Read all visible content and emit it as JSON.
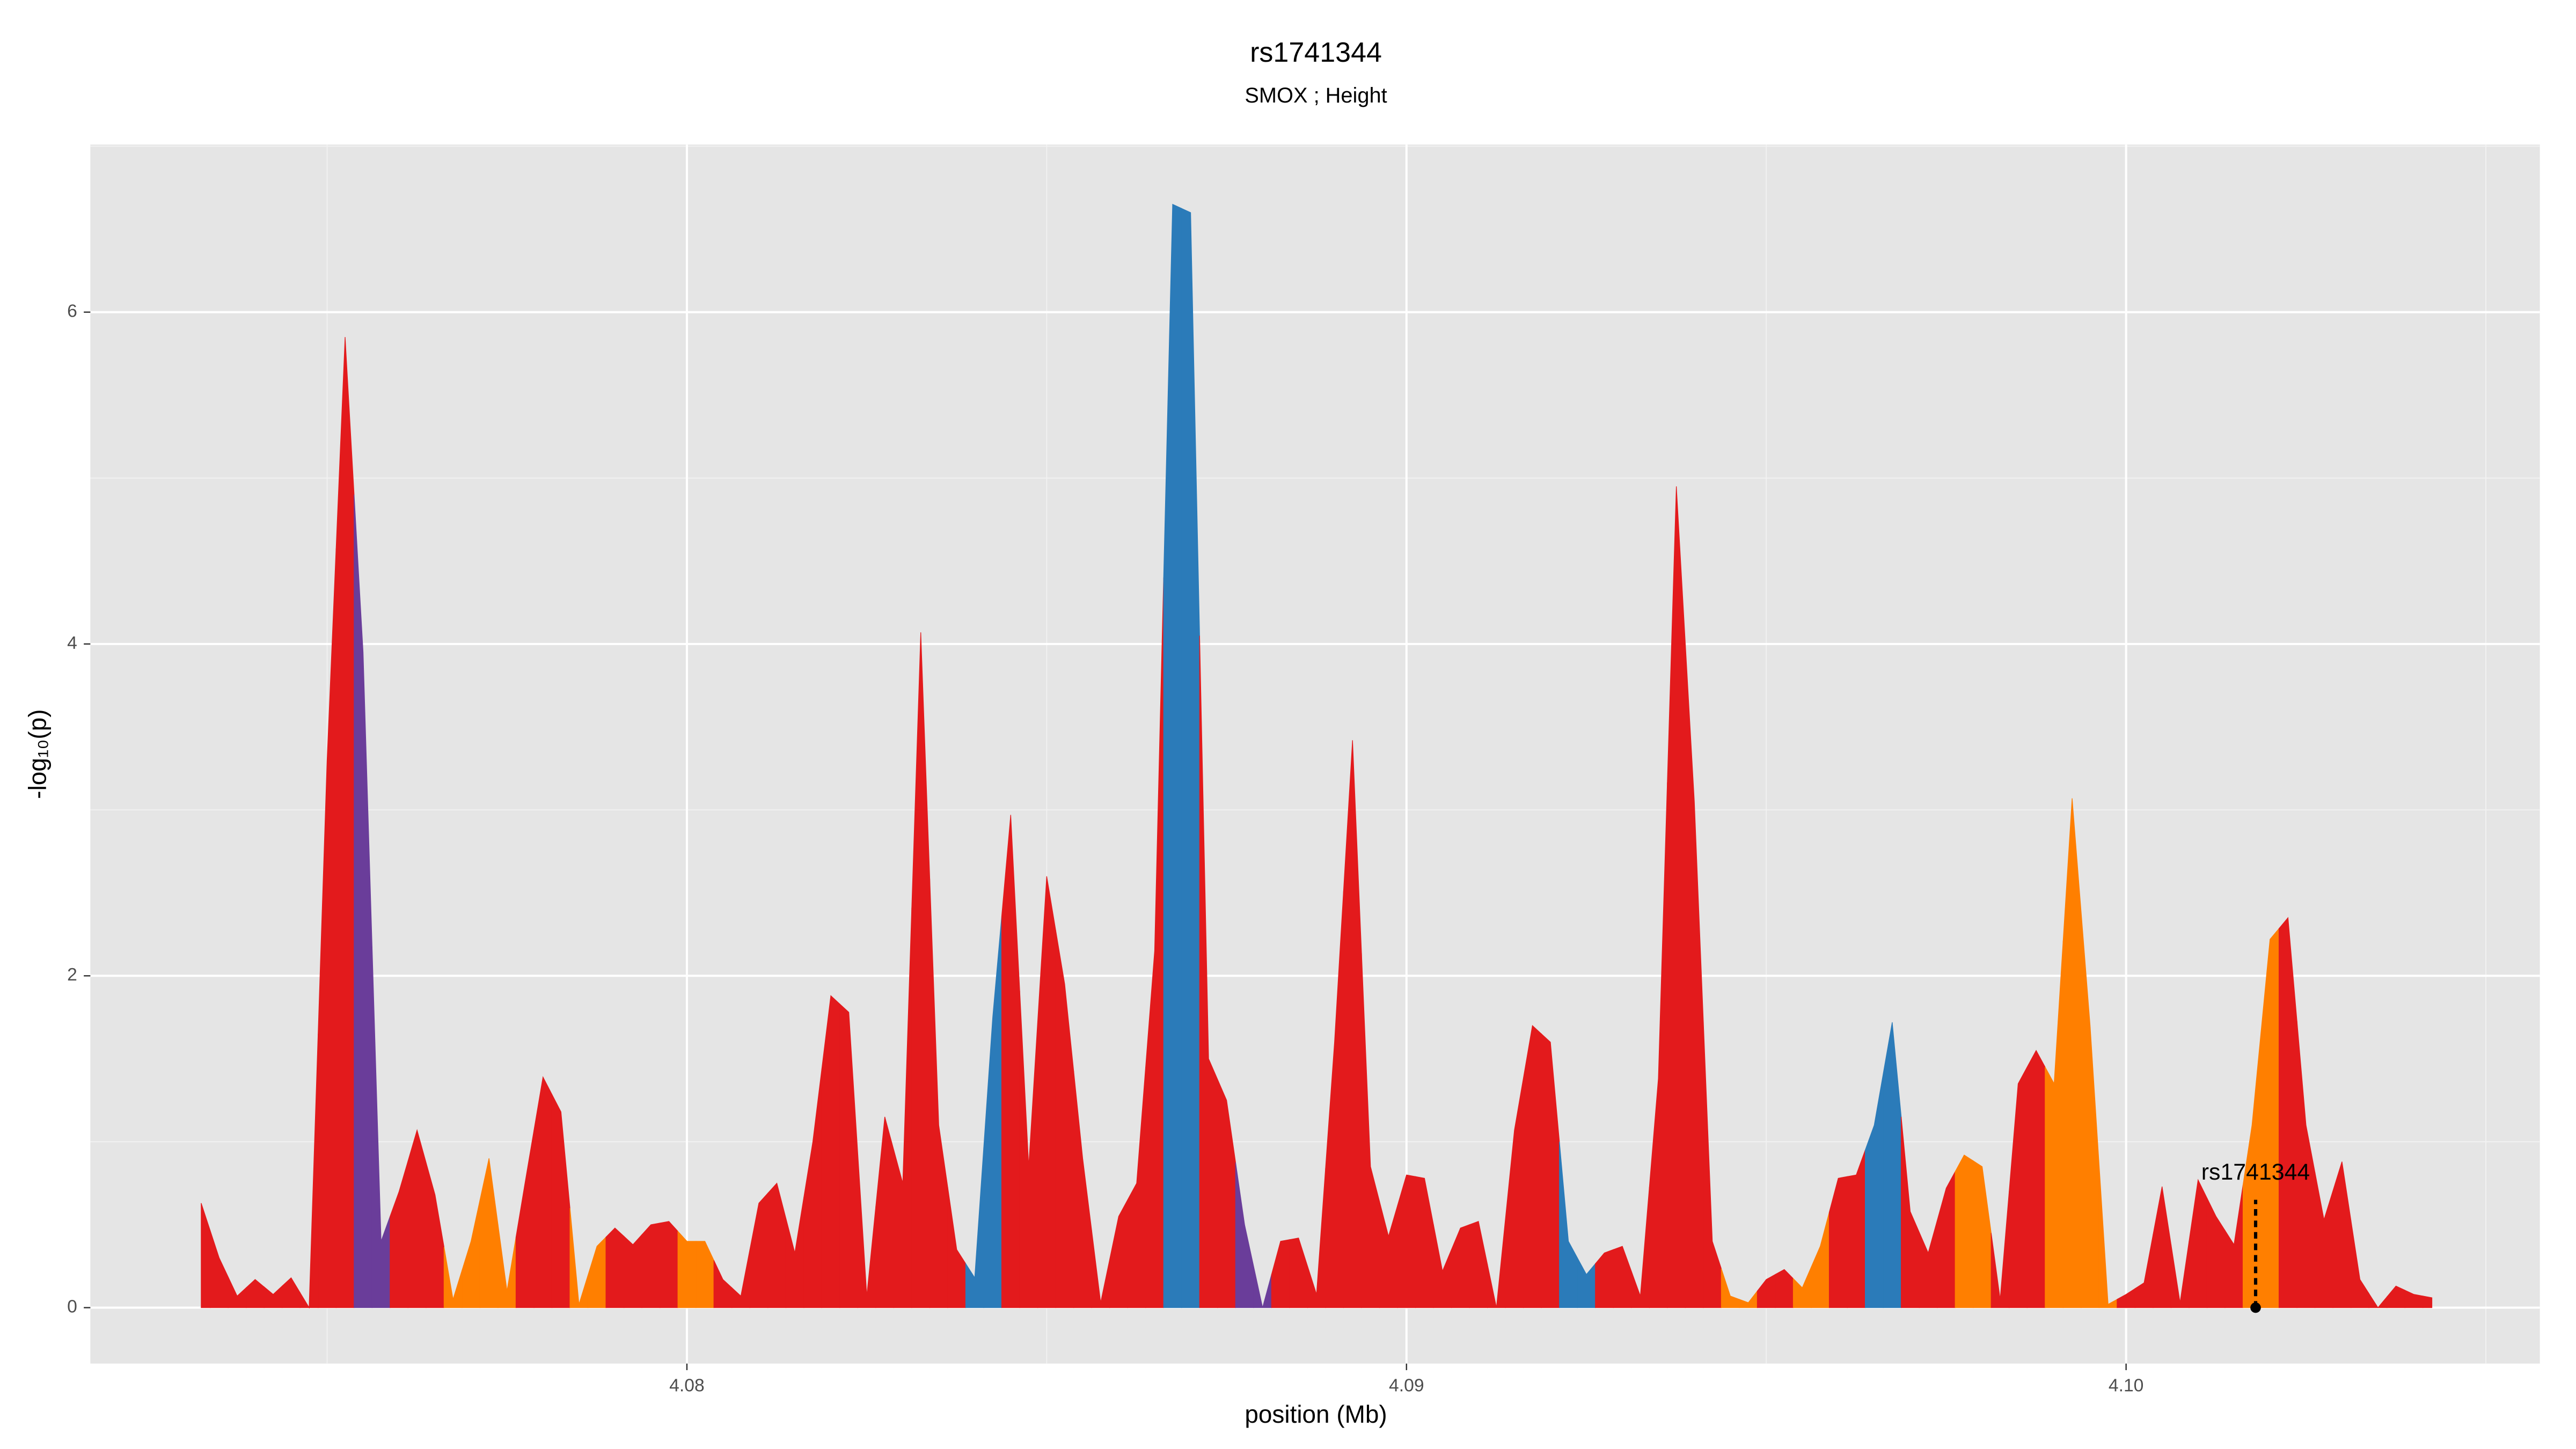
{
  "chart_data": {
    "type": "area",
    "title": "rs1741344",
    "subtitle": "SMOX ; Height",
    "xlabel": "position (Mb)",
    "ylabel": "-log₁₀(p)",
    "x": [
      4.07325,
      4.0735,
      4.07375,
      4.074,
      4.07425,
      4.0745,
      4.07475,
      4.075,
      4.07525,
      4.0755,
      4.07575,
      4.076,
      4.07625,
      4.0765,
      4.07675,
      4.077,
      4.07725,
      4.0775,
      4.07775,
      4.078,
      4.07825,
      4.0785,
      4.07875,
      4.079,
      4.07925,
      4.0795,
      4.07975,
      4.08,
      4.08025,
      4.0805,
      4.08075,
      4.081,
      4.08125,
      4.0815,
      4.08175,
      4.082,
      4.08225,
      4.0825,
      4.08275,
      4.083,
      4.08325,
      4.0835,
      4.08375,
      4.084,
      4.08425,
      4.0845,
      4.08475,
      4.085,
      4.08525,
      4.0855,
      4.08575,
      4.086,
      4.08625,
      4.0865,
      4.08675,
      4.087,
      4.08725,
      4.0875,
      4.08775,
      4.088,
      4.08825,
      4.0885,
      4.08875,
      4.089,
      4.08925,
      4.0895,
      4.08975,
      4.09,
      4.09025,
      4.0905,
      4.09075,
      4.091,
      4.09125,
      4.0915,
      4.09175,
      4.092,
      4.09225,
      4.0925,
      4.09275,
      4.093,
      4.09325,
      4.0935,
      4.09375,
      4.094,
      4.09425,
      4.0945,
      4.09475,
      4.095,
      4.09525,
      4.0955,
      4.09575,
      4.096,
      4.09625,
      4.0965,
      4.09675,
      4.097,
      4.09725,
      4.0975,
      4.09775,
      4.098,
      4.09825,
      4.0985,
      4.09875,
      4.099,
      4.09925,
      4.0995,
      4.09975,
      4.1,
      4.10025,
      4.1005,
      4.10075,
      4.101,
      4.10125,
      4.1015,
      4.10175,
      4.102,
      4.10225,
      4.1025,
      4.10275,
      4.103,
      4.10325,
      4.1035,
      4.10375,
      4.104,
      4.10425
    ],
    "values": [
      0.63,
      0.3,
      0.07,
      0.17,
      0.08,
      0.18,
      0,
      3.3,
      5.85,
      3.95,
      0.4,
      0.7,
      1.07,
      0.68,
      0.05,
      0.4,
      0.9,
      0.1,
      0.75,
      1.39,
      1.18,
      0.02,
      0.37,
      0.48,
      0.38,
      0.5,
      0.52,
      0.4,
      0.4,
      0.17,
      0.07,
      0.63,
      0.75,
      0.33,
      1.0,
      1.88,
      1.78,
      0.07,
      1.15,
      0.75,
      4.07,
      1.1,
      0.35,
      0.18,
      1.75,
      2.97,
      0.85,
      2.6,
      1.95,
      0.9,
      0.03,
      0.55,
      0.75,
      2.15,
      6.65,
      6.6,
      1.5,
      1.25,
      0.5,
      0,
      0.4,
      0.42,
      0.08,
      1.6,
      3.42,
      0.85,
      0.43,
      0.8,
      0.78,
      0.22,
      0.48,
      0.52,
      0,
      1.07,
      1.7,
      1.6,
      0.4,
      0.2,
      0.33,
      0.37,
      0.07,
      1.38,
      4.95,
      3.05,
      0.4,
      0.07,
      0.03,
      0.17,
      0.23,
      0.12,
      0.37,
      0.78,
      0.8,
      1.1,
      1.72,
      0.58,
      0.33,
      0.72,
      0.92,
      0.85,
      0.05,
      1.35,
      1.55,
      1.35,
      3.07,
      1.7,
      0.02,
      0.08,
      0.15,
      0.73,
      0.03,
      0.77,
      0.55,
      0.38,
      1.1,
      2.22,
      2.35,
      1.1,
      0.53,
      0.88,
      0.17,
      0,
      0.13,
      0.08,
      0.06
    ],
    "colors": [
      "#e31a1c",
      "#e31a1c",
      "#e31a1c",
      "#e31a1c",
      "#e31a1c",
      "#e31a1c",
      "#e31a1c",
      "#e31a1c",
      "#e31a1c",
      "#6a3d9a",
      "#6a3d9a",
      "#e31a1c",
      "#e31a1c",
      "#e31a1c",
      "#ff7f00",
      "#ff7f00",
      "#ff7f00",
      "#ff7f00",
      "#e31a1c",
      "#e31a1c",
      "#e31a1c",
      "#ff7f00",
      "#ff7f00",
      "#e31a1c",
      "#e31a1c",
      "#e31a1c",
      "#e31a1c",
      "#ff7f00",
      "#ff7f00",
      "#e31a1c",
      "#e31a1c",
      "#e31a1c",
      "#e31a1c",
      "#e31a1c",
      "#e31a1c",
      "#e31a1c",
      "#e31a1c",
      "#e31a1c",
      "#e31a1c",
      "#e31a1c",
      "#e31a1c",
      "#e31a1c",
      "#e31a1c",
      "#2b7bb9",
      "#2b7bb9",
      "#e31a1c",
      "#e31a1c",
      "#e31a1c",
      "#e31a1c",
      "#e31a1c",
      "#e31a1c",
      "#e31a1c",
      "#e31a1c",
      "#e31a1c",
      "#2b7bb9",
      "#2b7bb9",
      "#e31a1c",
      "#e31a1c",
      "#6a3d9a",
      "#6a3d9a",
      "#e31a1c",
      "#e31a1c",
      "#e31a1c",
      "#e31a1c",
      "#e31a1c",
      "#e31a1c",
      "#e31a1c",
      "#e31a1c",
      "#e31a1c",
      "#e31a1c",
      "#e31a1c",
      "#e31a1c",
      "#e31a1c",
      "#e31a1c",
      "#e31a1c",
      "#e31a1c",
      "#2b7bb9",
      "#2b7bb9",
      "#e31a1c",
      "#e31a1c",
      "#e31a1c",
      "#e31a1c",
      "#e31a1c",
      "#e31a1c",
      "#e31a1c",
      "#ff7f00",
      "#ff7f00",
      "#e31a1c",
      "#e31a1c",
      "#ff7f00",
      "#ff7f00",
      "#e31a1c",
      "#e31a1c",
      "#2b7bb9",
      "#2b7bb9",
      "#e31a1c",
      "#e31a1c",
      "#e31a1c",
      "#ff7f00",
      "#ff7f00",
      "#e31a1c",
      "#e31a1c",
      "#e31a1c",
      "#ff7f00",
      "#ff7f00",
      "#ff7f00",
      "#ff7f00",
      "#e31a1c",
      "#e31a1c",
      "#e31a1c",
      "#e31a1c",
      "#e31a1c",
      "#e31a1c",
      "#e31a1c",
      "#ff7f00",
      "#ff7f00",
      "#e31a1c",
      "#e31a1c",
      "#e31a1c",
      "#e31a1c",
      "#e31a1c",
      "#e31a1c",
      "#e31a1c",
      "#e31a1c",
      "#e31a1c"
    ],
    "xlim": [
      4.07171,
      4.10575
    ],
    "ylim": [
      -0.337,
      7.01
    ],
    "xticks": [
      4.08,
      4.09,
      {
        "value": 4.1,
        "label": "4.10"
      }
    ],
    "yticks": [
      0,
      2,
      4,
      6
    ],
    "grid": true,
    "annotation": {
      "text": "rs1741344",
      "x": 4.1018,
      "y": 0.65
    }
  }
}
